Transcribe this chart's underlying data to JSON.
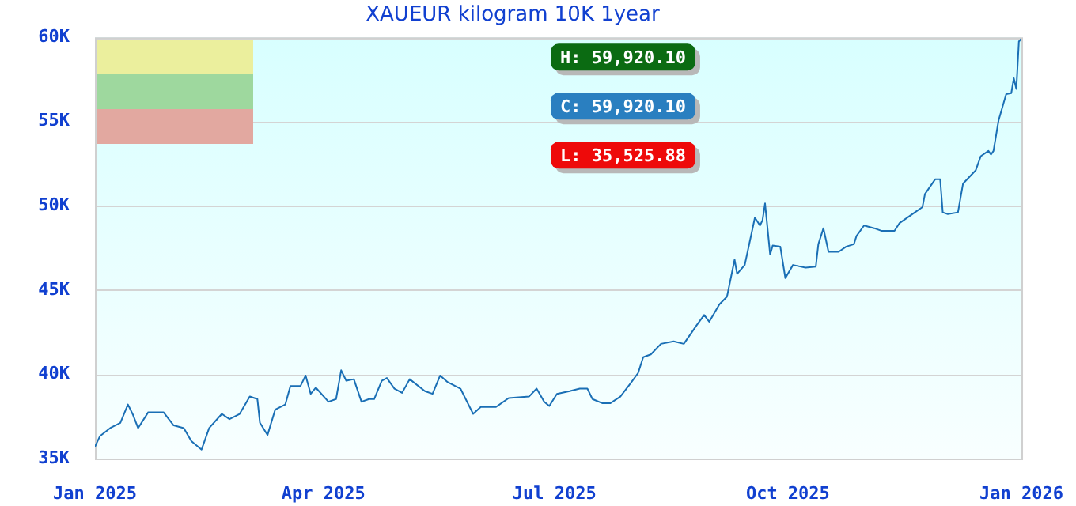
{
  "chart_data": {
    "type": "line",
    "title": "XAUEUR kilogram 10K 1year",
    "x": [
      "2025-01-01",
      "2025-01-03",
      "2025-01-07",
      "2025-01-11",
      "2025-01-14",
      "2025-01-16",
      "2025-01-18",
      "2025-01-22",
      "2025-01-28",
      "2025-02-01",
      "2025-02-05",
      "2025-02-08",
      "2025-02-12",
      "2025-02-15",
      "2025-02-20",
      "2025-02-23",
      "2025-02-27",
      "2025-03-03",
      "2025-03-06",
      "2025-03-07",
      "2025-03-10",
      "2025-03-13",
      "2025-03-17",
      "2025-03-19",
      "2025-03-23",
      "2025-03-25",
      "2025-03-27",
      "2025-03-29",
      "2025-04-03",
      "2025-04-06",
      "2025-04-08",
      "2025-04-10",
      "2025-04-13",
      "2025-04-16",
      "2025-04-19",
      "2025-04-21",
      "2025-04-24",
      "2025-04-26",
      "2025-04-29",
      "2025-05-02",
      "2025-05-05",
      "2025-05-11",
      "2025-05-14",
      "2025-05-17",
      "2025-05-20",
      "2025-05-25",
      "2025-05-30",
      "2025-06-02",
      "2025-06-08",
      "2025-06-13",
      "2025-06-21",
      "2025-06-24",
      "2025-06-27",
      "2025-06-29",
      "2025-07-02",
      "2025-07-07",
      "2025-07-11",
      "2025-07-14",
      "2025-07-16",
      "2025-07-20",
      "2025-07-23",
      "2025-07-27",
      "2025-07-31",
      "2025-08-03",
      "2025-08-05",
      "2025-08-08",
      "2025-08-12",
      "2025-08-17",
      "2025-08-21",
      "2025-08-26",
      "2025-08-29",
      "2025-08-31",
      "2025-09-04",
      "2025-09-07",
      "2025-09-10",
      "2025-09-11",
      "2025-09-14",
      "2025-09-16",
      "2025-09-18",
      "2025-09-20",
      "2025-09-21",
      "2025-09-22",
      "2025-09-24",
      "2025-09-25",
      "2025-09-28",
      "2025-09-30",
      "2025-10-03",
      "2025-10-08",
      "2025-10-12",
      "2025-10-13",
      "2025-10-15",
      "2025-10-17",
      "2025-10-21",
      "2025-10-24",
      "2025-10-27",
      "2025-10-28",
      "2025-10-31",
      "2025-11-04",
      "2025-11-07",
      "2025-11-12",
      "2025-11-14",
      "2025-11-20",
      "2025-11-23",
      "2025-11-24",
      "2025-11-28",
      "2025-11-30",
      "2025-12-01",
      "2025-12-03",
      "2025-12-07",
      "2025-12-09",
      "2025-12-13",
      "2025-12-14",
      "2025-12-16",
      "2025-12-19",
      "2025-12-20",
      "2025-12-21",
      "2025-12-23",
      "2025-12-26",
      "2025-12-28",
      "2025-12-29",
      "2025-12-30",
      "2025-12-31",
      "2026-01-01"
    ],
    "series": [
      {
        "color": "#1a6fb5",
        "values": [
          35700,
          36340,
          36810,
          37120,
          38210,
          37590,
          36810,
          37750,
          37750,
          36970,
          36810,
          36030,
          35530,
          36810,
          37650,
          37340,
          37650,
          38680,
          38530,
          37120,
          36400,
          37900,
          38210,
          39310,
          39310,
          39930,
          38840,
          39210,
          38370,
          38530,
          40240,
          39620,
          39710,
          38370,
          38530,
          38530,
          39620,
          39780,
          39150,
          38900,
          39710,
          39000,
          38840,
          39930,
          39530,
          39150,
          37650,
          38060,
          38060,
          38590,
          38680,
          39150,
          38370,
          38120,
          38840,
          39000,
          39150,
          39150,
          38530,
          38280,
          38280,
          38680,
          39460,
          40080,
          41020,
          41180,
          41810,
          41960,
          41810,
          42900,
          43520,
          43120,
          44150,
          44610,
          46800,
          45960,
          46490,
          47890,
          49300,
          48830,
          49140,
          50140,
          47110,
          47640,
          47580,
          45710,
          46490,
          46330,
          46390,
          47720,
          48670,
          47270,
          47270,
          47580,
          47720,
          48200,
          48830,
          48670,
          48510,
          48510,
          48980,
          49610,
          49920,
          50700,
          51570,
          51570,
          49610,
          49510,
          49610,
          51320,
          51950,
          52110,
          52950,
          53260,
          53040,
          53260,
          55070,
          56630,
          56690,
          57570,
          56940,
          59750,
          59920
        ]
      }
    ],
    "xlim": [
      "2025-01-01",
      "2026-01-01"
    ],
    "xticks": [
      {
        "value": "2025-01-01",
        "label": "Jan 2025"
      },
      {
        "value": "2025-04-01",
        "label": "Apr 2025"
      },
      {
        "value": "2025-07-01",
        "label": "Jul 2025"
      },
      {
        "value": "2025-10-01",
        "label": "Oct 2025"
      },
      {
        "value": "2026-01-01",
        "label": "Jan 2026"
      }
    ],
    "ylim": [
      35000,
      60000
    ],
    "yticks": [
      {
        "value": 35000,
        "label": "35K"
      },
      {
        "value": 40000,
        "label": "40K"
      },
      {
        "value": 45000,
        "label": "45K"
      },
      {
        "value": 50000,
        "label": "50K"
      },
      {
        "value": 55000,
        "label": "55K"
      },
      {
        "value": 60000,
        "label": "60K"
      }
    ],
    "grid": "y",
    "marker": "none",
    "line_style": "solid",
    "annotations": [
      "H: 59,920.10",
      "C: 59,920.10",
      "L: 35,525.88"
    ]
  }
}
